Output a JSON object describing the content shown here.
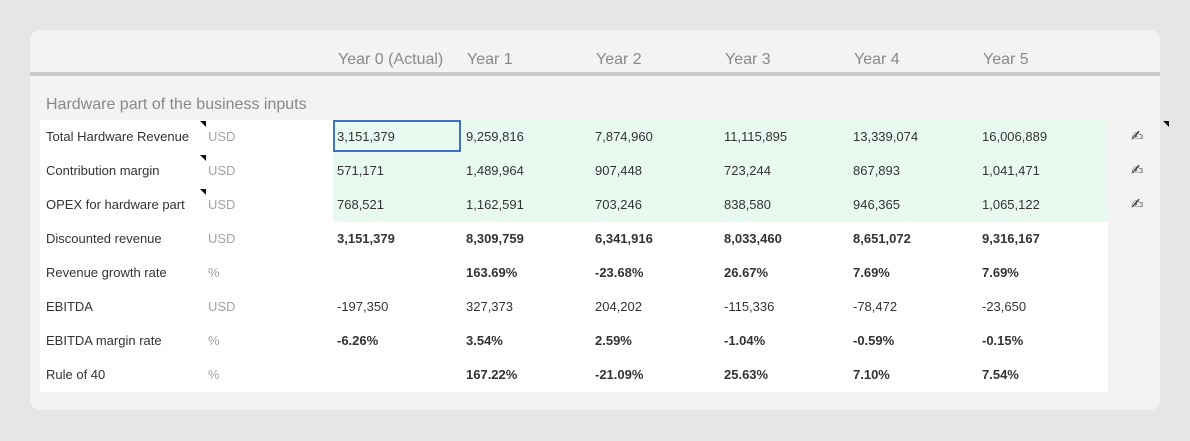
{
  "columns": [
    "Year 0 (Actual)",
    "Year 1",
    "Year 2",
    "Year 3",
    "Year 4",
    "Year 5"
  ],
  "section_title": "Hardware part of the business inputs",
  "edit_icon_glyph": "✍",
  "rows": [
    {
      "label": "Total Hardware Revenue",
      "unit": "USD",
      "values": [
        "3,151,379",
        "9,259,816",
        "7,874,960",
        "11,115,895",
        "13,339,074",
        "16,006,889"
      ]
    },
    {
      "label": "Contribution margin",
      "unit": "USD",
      "values": [
        "571,171",
        "1,489,964",
        "907,448",
        "723,244",
        "867,893",
        "1,041,471"
      ]
    },
    {
      "label": "OPEX for hardware part",
      "unit": "USD",
      "values": [
        "768,521",
        "1,162,591",
        "703,246",
        "838,580",
        "946,365",
        "1,065,122"
      ]
    },
    {
      "label": "Discounted revenue",
      "unit": "USD",
      "values": [
        "3,151,379",
        "8,309,759",
        "6,341,916",
        "8,033,460",
        "8,651,072",
        "9,316,167"
      ]
    },
    {
      "label": "Revenue growth rate",
      "unit": "%",
      "values": [
        "",
        "163.69%",
        "-23.68%",
        "26.67%",
        "7.69%",
        "7.69%"
      ]
    },
    {
      "label": "EBITDA",
      "unit": "USD",
      "values": [
        "-197,350",
        "327,373",
        "204,202",
        "-115,336",
        "-78,472",
        "-23,650"
      ]
    },
    {
      "label": "EBITDA margin rate",
      "unit": "%",
      "values": [
        "-6.26%",
        "3.54%",
        "2.59%",
        "-1.04%",
        "-0.59%",
        "-0.15%"
      ]
    },
    {
      "label": "Rule of 40",
      "unit": "%",
      "values": [
        "",
        "167.22%",
        "-21.09%",
        "25.63%",
        "7.10%",
        "7.54%"
      ]
    }
  ]
}
